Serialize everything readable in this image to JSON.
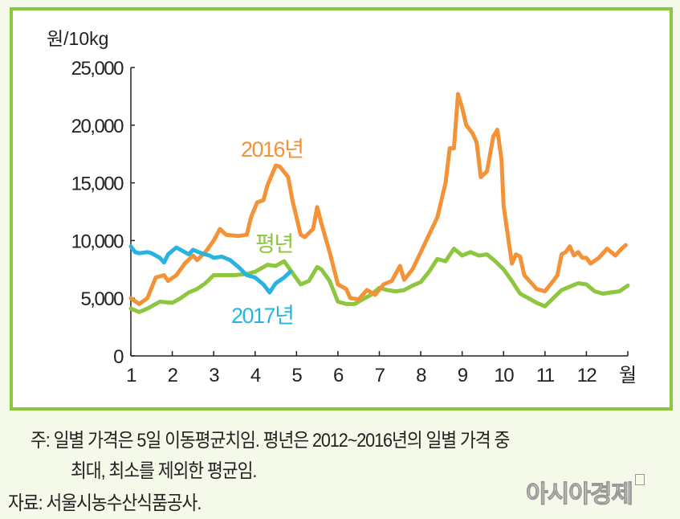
{
  "chart_data": {
    "type": "line",
    "ylabel": "원/10kg",
    "xlabel_unit": "월",
    "ylim": [
      0,
      25000
    ],
    "xlim": [
      1,
      13
    ],
    "yticks": [
      0,
      5000,
      10000,
      15000,
      20000,
      25000
    ],
    "ytick_labels": [
      "0",
      "5,000",
      "10,000",
      "15,000",
      "20,000",
      "25,000"
    ],
    "xtick_labels": [
      "1",
      "2",
      "3",
      "4",
      "5",
      "6",
      "7",
      "8",
      "9",
      "10",
      "11",
      "12"
    ],
    "grid": false,
    "series": [
      {
        "name": "2016년",
        "color": "#f39237",
        "points": [
          [
            1.0,
            5000
          ],
          [
            1.2,
            4500
          ],
          [
            1.4,
            5000
          ],
          [
            1.6,
            6800
          ],
          [
            1.8,
            7000
          ],
          [
            1.9,
            6500
          ],
          [
            2.1,
            7000
          ],
          [
            2.3,
            8000
          ],
          [
            2.5,
            8700
          ],
          [
            2.6,
            8300
          ],
          [
            2.8,
            9000
          ],
          [
            3.0,
            10000
          ],
          [
            3.15,
            11000
          ],
          [
            3.3,
            10500
          ],
          [
            3.6,
            10400
          ],
          [
            3.8,
            10500
          ],
          [
            3.9,
            12000
          ],
          [
            4.05,
            13300
          ],
          [
            4.2,
            13500
          ],
          [
            4.3,
            14800
          ],
          [
            4.5,
            16500
          ],
          [
            4.6,
            16400
          ],
          [
            4.8,
            15500
          ],
          [
            4.9,
            13500
          ],
          [
            5.1,
            10500
          ],
          [
            5.2,
            10300
          ],
          [
            5.4,
            11000
          ],
          [
            5.5,
            12900
          ],
          [
            5.6,
            11500
          ],
          [
            5.8,
            9000
          ],
          [
            6.0,
            6200
          ],
          [
            6.2,
            5800
          ],
          [
            6.3,
            5000
          ],
          [
            6.5,
            4900
          ],
          [
            6.7,
            5700
          ],
          [
            6.9,
            5300
          ],
          [
            7.1,
            6200
          ],
          [
            7.3,
            6500
          ],
          [
            7.5,
            7800
          ],
          [
            7.6,
            6600
          ],
          [
            7.8,
            7500
          ],
          [
            8.0,
            9000
          ],
          [
            8.2,
            10500
          ],
          [
            8.4,
            12000
          ],
          [
            8.6,
            15000
          ],
          [
            8.7,
            18000
          ],
          [
            8.8,
            18000
          ],
          [
            8.9,
            22700
          ],
          [
            9.0,
            21500
          ],
          [
            9.1,
            20000
          ],
          [
            9.25,
            19300
          ],
          [
            9.35,
            18500
          ],
          [
            9.45,
            15500
          ],
          [
            9.6,
            16000
          ],
          [
            9.75,
            19000
          ],
          [
            9.85,
            19600
          ],
          [
            9.95,
            17000
          ],
          [
            10.0,
            13000
          ],
          [
            10.2,
            8000
          ],
          [
            10.3,
            8800
          ],
          [
            10.4,
            8600
          ],
          [
            10.5,
            7000
          ],
          [
            10.7,
            6200
          ],
          [
            10.8,
            5800
          ],
          [
            11.0,
            5600
          ],
          [
            11.2,
            6500
          ],
          [
            11.3,
            7000
          ],
          [
            11.4,
            8800
          ],
          [
            11.5,
            9000
          ],
          [
            11.6,
            9500
          ],
          [
            11.7,
            8700
          ],
          [
            11.8,
            9000
          ],
          [
            11.9,
            8500
          ],
          [
            12.0,
            8500
          ],
          [
            12.1,
            8000
          ],
          [
            12.3,
            8500
          ],
          [
            12.5,
            9300
          ],
          [
            12.6,
            9000
          ],
          [
            12.7,
            8700
          ],
          [
            12.85,
            9300
          ],
          [
            12.95,
            9600
          ]
        ]
      },
      {
        "name": "평년",
        "color": "#8dc63f",
        "points": [
          [
            1.0,
            4100
          ],
          [
            1.2,
            3800
          ],
          [
            1.4,
            4100
          ],
          [
            1.7,
            4700
          ],
          [
            2.0,
            4600
          ],
          [
            2.2,
            5000
          ],
          [
            2.4,
            5500
          ],
          [
            2.6,
            5800
          ],
          [
            2.8,
            6300
          ],
          [
            3.0,
            7000
          ],
          [
            3.2,
            7000
          ],
          [
            3.5,
            7000
          ],
          [
            3.8,
            7100
          ],
          [
            4.0,
            7300
          ],
          [
            4.3,
            7900
          ],
          [
            4.5,
            7800
          ],
          [
            4.7,
            8200
          ],
          [
            4.9,
            7200
          ],
          [
            5.1,
            6200
          ],
          [
            5.3,
            6500
          ],
          [
            5.5,
            7700
          ],
          [
            5.6,
            7500
          ],
          [
            5.8,
            6500
          ],
          [
            6.0,
            4700
          ],
          [
            6.2,
            4500
          ],
          [
            6.4,
            4500
          ],
          [
            6.6,
            4900
          ],
          [
            6.8,
            5300
          ],
          [
            7.0,
            5900
          ],
          [
            7.2,
            5700
          ],
          [
            7.4,
            5600
          ],
          [
            7.6,
            5700
          ],
          [
            7.8,
            6100
          ],
          [
            8.0,
            6400
          ],
          [
            8.2,
            7300
          ],
          [
            8.4,
            8400
          ],
          [
            8.6,
            8200
          ],
          [
            8.8,
            9300
          ],
          [
            9.0,
            8700
          ],
          [
            9.2,
            9000
          ],
          [
            9.4,
            8700
          ],
          [
            9.6,
            8800
          ],
          [
            9.8,
            8200
          ],
          [
            10.0,
            7500
          ],
          [
            10.2,
            6500
          ],
          [
            10.4,
            5400
          ],
          [
            10.6,
            5000
          ],
          [
            10.8,
            4600
          ],
          [
            11.0,
            4300
          ],
          [
            11.2,
            5000
          ],
          [
            11.4,
            5700
          ],
          [
            11.6,
            6000
          ],
          [
            11.8,
            6300
          ],
          [
            12.0,
            6200
          ],
          [
            12.2,
            5600
          ],
          [
            12.4,
            5400
          ],
          [
            12.6,
            5500
          ],
          [
            12.8,
            5600
          ],
          [
            13.0,
            6100
          ]
        ]
      },
      {
        "name": "2017년",
        "color": "#29b3e0",
        "points": [
          [
            1.0,
            9500
          ],
          [
            1.1,
            9000
          ],
          [
            1.2,
            8900
          ],
          [
            1.4,
            9000
          ],
          [
            1.5,
            8900
          ],
          [
            1.7,
            8500
          ],
          [
            1.8,
            8100
          ],
          [
            1.9,
            8800
          ],
          [
            2.1,
            9400
          ],
          [
            2.3,
            9000
          ],
          [
            2.4,
            8800
          ],
          [
            2.5,
            9200
          ],
          [
            2.7,
            8900
          ],
          [
            2.9,
            8700
          ],
          [
            3.0,
            8500
          ],
          [
            3.2,
            8600
          ],
          [
            3.4,
            8300
          ],
          [
            3.6,
            7700
          ],
          [
            3.8,
            7000
          ],
          [
            4.0,
            6800
          ],
          [
            4.2,
            6200
          ],
          [
            4.35,
            5500
          ],
          [
            4.5,
            6300
          ],
          [
            4.7,
            6800
          ],
          [
            4.85,
            7300
          ]
        ]
      }
    ]
  },
  "notes": {
    "line1": "주: 일별 가격은 5일 이동평균치임. 평년은 2012~2016년의 일별 가격 중",
    "line2": "최대, 최소를 제외한 평균임.",
    "source": "자료: 서울시농수산식품공사."
  },
  "watermark": "아시아경제"
}
